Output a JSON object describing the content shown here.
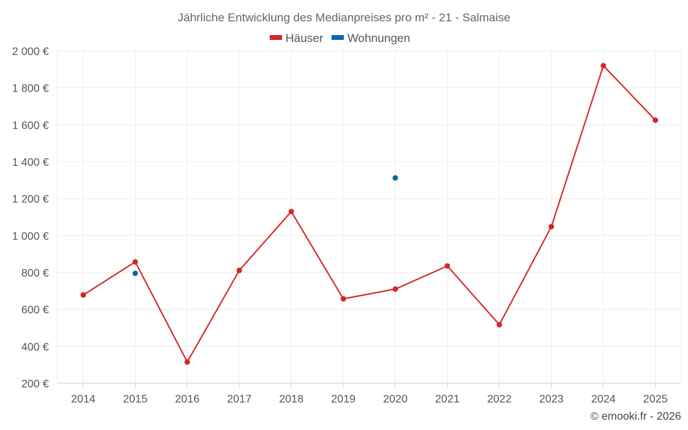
{
  "chart_data": {
    "type": "line",
    "title": "Jährliche Entwicklung des Medianpreises pro m² - 21 - Salmaise",
    "categories": [
      "2014",
      "2015",
      "2016",
      "2017",
      "2018",
      "2019",
      "2020",
      "2021",
      "2022",
      "2023",
      "2024",
      "2025"
    ],
    "series": [
      {
        "name": "Häuser",
        "color": "#d62728",
        "mode": "line+markers",
        "values": [
          678,
          857,
          315,
          811,
          1130,
          657,
          710,
          835,
          517,
          1048,
          1920,
          1625
        ]
      },
      {
        "name": "Wohnungen",
        "color": "#0b6aa6",
        "mode": "markers",
        "values": [
          null,
          795,
          null,
          null,
          null,
          null,
          1312,
          null,
          null,
          null,
          null,
          null
        ]
      }
    ],
    "yticks": [
      200,
      400,
      600,
      800,
      1000,
      1200,
      1400,
      1600,
      1800,
      2000
    ],
    "ytick_labels": [
      "200 €",
      "400 €",
      "600 €",
      "800 €",
      "1 000 €",
      "1 200 €",
      "1 400 €",
      "1 600 €",
      "1 800 €",
      "2 000 €"
    ],
    "ylim": [
      200,
      2000
    ],
    "xlabel": "",
    "ylabel": "",
    "grid": true,
    "legend_position": "top-center"
  },
  "credit": "© emooki.fr - 2026"
}
